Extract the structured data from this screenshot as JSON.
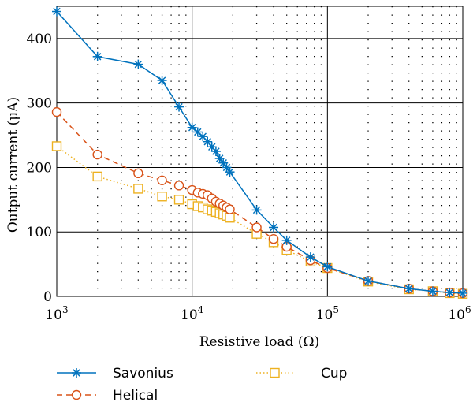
{
  "chart_data": {
    "type": "line",
    "xscale": "log",
    "xlabel": "Resistive load (Ω)",
    "ylabel": "Output current (μA)",
    "xlim": [
      1000,
      1000000
    ],
    "ylim": [
      0,
      450
    ],
    "x_major_ticks": [
      1000,
      10000,
      100000,
      1000000
    ],
    "x_tick_labels": [
      {
        "base": "10",
        "exp": "3"
      },
      {
        "base": "10",
        "exp": "4"
      },
      {
        "base": "10",
        "exp": "5"
      },
      {
        "base": "10",
        "exp": "6"
      }
    ],
    "y_ticks": [
      0,
      100,
      200,
      300,
      400
    ],
    "y_tick_labels": [
      "0",
      "100",
      "200",
      "300",
      "400"
    ],
    "grid": {
      "major": "solid",
      "minor": "dotted"
    },
    "legend_position": "bottom",
    "series": [
      {
        "name": "Savonius",
        "color": "#0072BD",
        "marker": "asterisk",
        "line": "solid",
        "x": [
          1000,
          2000,
          4000,
          6000,
          8000,
          10000,
          11000,
          12000,
          13000,
          14000,
          15000,
          16000,
          17000,
          18000,
          19000,
          30000,
          40000,
          50000,
          75000,
          100000,
          200000,
          400000,
          600000,
          800000,
          1000000
        ],
        "y": [
          442,
          372,
          360,
          335,
          294,
          262,
          255,
          248,
          240,
          232,
          225,
          214,
          207,
          200,
          193,
          134,
          107,
          87,
          61,
          46,
          24,
          12,
          8,
          6,
          5
        ]
      },
      {
        "name": "Helical",
        "color": "#D95319",
        "marker": "circle",
        "line": "dashed",
        "x": [
          1000,
          2000,
          4000,
          6000,
          8000,
          10000,
          11000,
          12000,
          13000,
          14000,
          15000,
          16000,
          17000,
          18000,
          19000,
          30000,
          40000,
          50000,
          75000,
          100000,
          200000,
          400000,
          600000,
          800000,
          1000000
        ],
        "y": [
          286,
          220,
          191,
          180,
          172,
          165,
          161,
          159,
          157,
          152,
          147,
          144,
          141,
          138,
          135,
          107,
          89,
          77,
          56,
          44,
          24,
          12,
          8,
          6,
          5
        ]
      },
      {
        "name": "Cup",
        "color": "#EDB120",
        "marker": "square",
        "line": "dotted",
        "x": [
          1000,
          2000,
          4000,
          6000,
          8000,
          10000,
          11000,
          12000,
          13000,
          14000,
          15000,
          16000,
          17000,
          18000,
          19000,
          30000,
          40000,
          50000,
          75000,
          100000,
          200000,
          400000,
          600000,
          800000,
          1000000
        ],
        "y": [
          233,
          186,
          167,
          155,
          150,
          143,
          140,
          138,
          135,
          133,
          131,
          129,
          127,
          125,
          122,
          97,
          84,
          72,
          54,
          44,
          23,
          11,
          8,
          5,
          4
        ]
      }
    ]
  }
}
